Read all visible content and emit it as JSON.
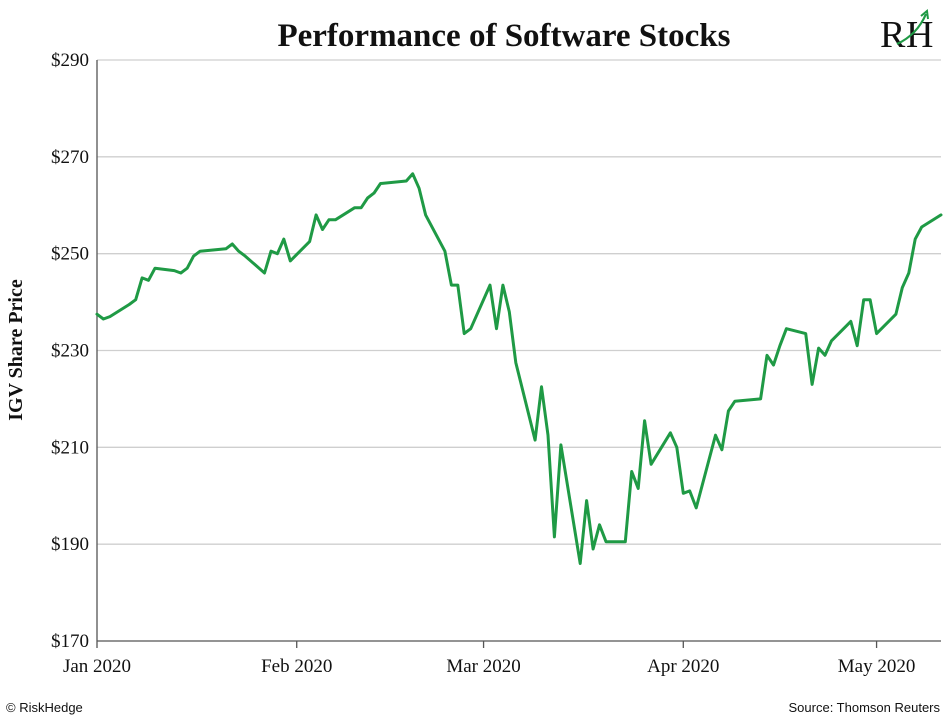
{
  "chart_data": {
    "type": "line",
    "title": "Performance of Software Stocks",
    "xlabel": "",
    "ylabel": "IGV Share Price",
    "yticks": [
      "$290",
      "$270",
      "$250",
      "$230",
      "$210",
      "$190",
      "$170"
    ],
    "ytick_values": [
      290,
      270,
      250,
      230,
      210,
      190,
      170
    ],
    "ylim": [
      170,
      290
    ],
    "xticks": [
      "Jan 2020",
      "Feb 2020",
      "Mar 2020",
      "Apr 2020",
      "May 2020"
    ],
    "xtick_dates": [
      "2020-01-01",
      "2020-02-01",
      "2020-03-01",
      "2020-04-01",
      "2020-05-01"
    ],
    "xlim": [
      "2020-01-01",
      "2020-05-11"
    ],
    "grid": "horizontal",
    "colors": {
      "line": "#1f9a45",
      "grid": "#cfcfcf",
      "axis": "#555555"
    },
    "series": [
      {
        "x": [
          "2020-01-01",
          "2020-01-02",
          "2020-01-03",
          "2020-01-06",
          "2020-01-07",
          "2020-01-08",
          "2020-01-09",
          "2020-01-10",
          "2020-01-13",
          "2020-01-14",
          "2020-01-15",
          "2020-01-16",
          "2020-01-17",
          "2020-01-21",
          "2020-01-22",
          "2020-01-23",
          "2020-01-24",
          "2020-01-27",
          "2020-01-28",
          "2020-01-29",
          "2020-01-30",
          "2020-01-31",
          "2020-02-03",
          "2020-02-04",
          "2020-02-05",
          "2020-02-06",
          "2020-02-07",
          "2020-02-10",
          "2020-02-11",
          "2020-02-12",
          "2020-02-13",
          "2020-02-14",
          "2020-02-18",
          "2020-02-19",
          "2020-02-20",
          "2020-02-21",
          "2020-02-24",
          "2020-02-25",
          "2020-02-26",
          "2020-02-27",
          "2020-02-28",
          "2020-03-02",
          "2020-03-03",
          "2020-03-04",
          "2020-03-05",
          "2020-03-06",
          "2020-03-09",
          "2020-03-10",
          "2020-03-11",
          "2020-03-12",
          "2020-03-13",
          "2020-03-16",
          "2020-03-17",
          "2020-03-18",
          "2020-03-19",
          "2020-03-20",
          "2020-03-23",
          "2020-03-24",
          "2020-03-25",
          "2020-03-26",
          "2020-03-27",
          "2020-03-30",
          "2020-03-31",
          "2020-04-01",
          "2020-04-02",
          "2020-04-03",
          "2020-04-06",
          "2020-04-07",
          "2020-04-08",
          "2020-04-09",
          "2020-04-13",
          "2020-04-14",
          "2020-04-15",
          "2020-04-16",
          "2020-04-17",
          "2020-04-20",
          "2020-04-21",
          "2020-04-22",
          "2020-04-23",
          "2020-04-24",
          "2020-04-27",
          "2020-04-28",
          "2020-04-29",
          "2020-04-30",
          "2020-05-01",
          "2020-05-04",
          "2020-05-05",
          "2020-05-06",
          "2020-05-07",
          "2020-05-08",
          "2020-05-11"
        ],
        "values": [
          237.5,
          236.5,
          237,
          239.5,
          240.5,
          245,
          244.5,
          247,
          246.5,
          246,
          247,
          249.5,
          250.5,
          251,
          252,
          250.5,
          249.5,
          246,
          250.5,
          250,
          253,
          248.5,
          252.5,
          258,
          255,
          257,
          257,
          259.5,
          259.5,
          261.5,
          262.5,
          264.5,
          265,
          266.5,
          263.5,
          258,
          250.5,
          243.5,
          243.5,
          233.5,
          234.5,
          243.5,
          234.5,
          243.5,
          238,
          227.5,
          211.5,
          222.5,
          212.5,
          191.5,
          210.5,
          186,
          199,
          189,
          194,
          190.5,
          190.5,
          205,
          201.5,
          215.5,
          206.5,
          213,
          210,
          200.5,
          201,
          197.5,
          212.5,
          209.5,
          217.5,
          219.5,
          220,
          229,
          227,
          231,
          234.5,
          233.5,
          223,
          230.5,
          229,
          232,
          236,
          231,
          240.5,
          240.5,
          233.5,
          237.5,
          243,
          246,
          253,
          255.5,
          258
        ]
      }
    ],
    "source": "Source: Thomson Reuters",
    "copyright": "© RiskHedge",
    "logo_text": "RH"
  }
}
